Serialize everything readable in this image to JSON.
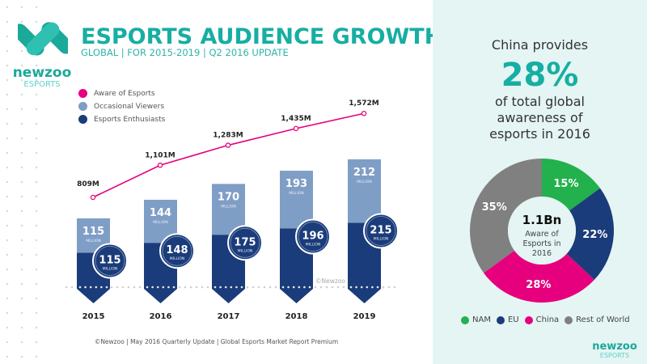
{
  "header": {
    "title": "ESPORTS AUDIENCE GROWTH",
    "subtitle": "GLOBAL | FOR 2015-2019 | Q2 2016 UPDATE",
    "brand": "newzoo",
    "brand_sub": "ESPORTS"
  },
  "footer": "©Newzoo | May 2016 Quarterly Update | Global Esports Market Report Premium",
  "watermark": "©Newzoo",
  "colors": {
    "aware": "#e6007e",
    "occasional": "#7f9ec6",
    "enthusiasts": "#1b3c7a",
    "teal": "#17aea3",
    "nam": "#22b14c",
    "eu": "#1b3c7a",
    "china": "#e6007e",
    "row": "#808080"
  },
  "chart_data": [
    {
      "type": "bar",
      "stacked": true,
      "categories": [
        "2015",
        "2016",
        "2017",
        "2018",
        "2019"
      ],
      "series": [
        {
          "name": "Esports Enthusiasts",
          "values": [
            115,
            148,
            175,
            196,
            215
          ]
        },
        {
          "name": "Occasional Viewers",
          "values": [
            115,
            144,
            170,
            193,
            212
          ]
        }
      ],
      "bar_unit": "MILLION",
      "line": {
        "name": "Aware of Esports",
        "values": [
          809,
          1101,
          1283,
          1435,
          1572
        ],
        "labels": [
          "809M",
          "1,101M",
          "1,283M",
          "1,435M",
          "1,572M"
        ]
      },
      "legend": [
        "Aware of Esports",
        "Occasional Viewers",
        "Esports Enthusiasts"
      ],
      "legend_position": "top-left",
      "grid": false
    },
    {
      "type": "pie",
      "donut": true,
      "headline": [
        "China provides",
        "28%",
        "of total global awareness of esports in 2016"
      ],
      "center": {
        "value": "1.1Bn",
        "label": "Aware of Esports in 2016"
      },
      "slices": [
        {
          "name": "NAM",
          "value": 15,
          "label": "15%"
        },
        {
          "name": "EU",
          "value": 22,
          "label": "22%"
        },
        {
          "name": "China",
          "value": 28,
          "label": "28%"
        },
        {
          "name": "Rest of World",
          "value": 35,
          "label": "35%"
        }
      ],
      "legend_position": "bottom"
    }
  ]
}
